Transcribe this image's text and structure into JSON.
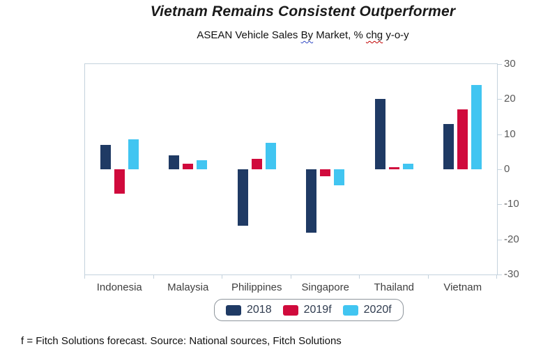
{
  "header": {
    "title": "Vietnam Remains Consistent Outperformer",
    "subtitle_full": "ASEAN Vehicle Sales By Market, % chg y-o-y",
    "subtitle_segments": [
      {
        "text": "ASEAN Vehicle Sales ",
        "squiggle": "none"
      },
      {
        "text": "By",
        "squiggle": "blue"
      },
      {
        "text": " Market, % ",
        "squiggle": "none"
      },
      {
        "text": "chg",
        "squiggle": "red"
      },
      {
        "text": " y-o-y",
        "squiggle": "none"
      }
    ]
  },
  "chart_data": {
    "type": "bar",
    "title": "Vietnam Remains Consistent Outperformer",
    "subtitle": "ASEAN Vehicle Sales By Market, % chg y-o-y",
    "categories": [
      "Indonesia",
      "Malaysia",
      "Philippines",
      "Singapore",
      "Thailand",
      "Vietnam"
    ],
    "series": [
      {
        "name": "2018",
        "color": "#1f3a64",
        "values": [
          7,
          4,
          -16,
          -18,
          20,
          13
        ]
      },
      {
        "name": "2019f",
        "color": "#d00a3c",
        "values": [
          -7,
          1.5,
          3,
          -2,
          0.5,
          17
        ]
      },
      {
        "name": "2020f",
        "color": "#41c5f1",
        "values": [
          8.5,
          2.5,
          7.5,
          -4.5,
          1.5,
          24
        ]
      }
    ],
    "ylim": [
      -30,
      30
    ],
    "yticks": [
      30,
      20,
      10,
      0,
      -10,
      -20,
      -30
    ],
    "xlabel": "",
    "ylabel": "",
    "grid": false,
    "legend_position": "bottom",
    "y_axis_side": "right",
    "axis_color": "#c4d2dd"
  },
  "footer": {
    "note": "f = Fitch Solutions forecast. Source: National sources, Fitch Solutions"
  }
}
